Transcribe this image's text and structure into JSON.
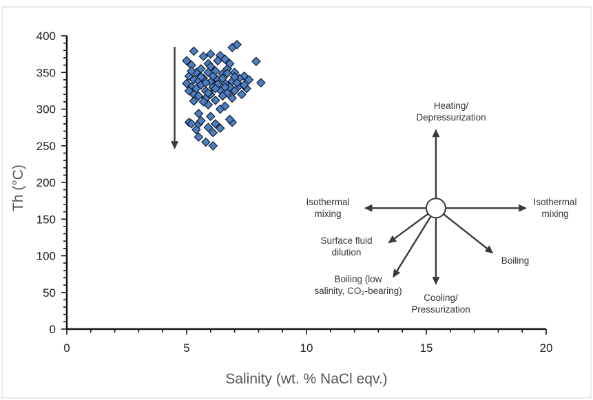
{
  "chart_data": {
    "type": "scatter",
    "xlabel": "Salinity (wt. % NaCl eqv.)",
    "ylabel": "Th (°C)",
    "xlim": [
      0,
      20
    ],
    "ylim": [
      0,
      400
    ],
    "xticks": [
      0,
      5,
      10,
      15,
      20
    ],
    "yticks": [
      0,
      50,
      100,
      150,
      200,
      250,
      300,
      350,
      400
    ],
    "grid": false,
    "marker": "diamond",
    "colors": {
      "marker_fill": "#4f7fc0",
      "marker_edge": "#0d1a30"
    },
    "points": [
      [
        5.3,
        379
      ],
      [
        6.0,
        375
      ],
      [
        6.9,
        384
      ],
      [
        7.1,
        388
      ],
      [
        7.9,
        365
      ],
      [
        6.4,
        373
      ],
      [
        5.0,
        366
      ],
      [
        5.2,
        360
      ],
      [
        5.6,
        355
      ],
      [
        5.9,
        350
      ],
      [
        6.2,
        352
      ],
      [
        6.5,
        348
      ],
      [
        6.7,
        355
      ],
      [
        6.8,
        362
      ],
      [
        7.0,
        350
      ],
      [
        7.4,
        345
      ],
      [
        7.6,
        340
      ],
      [
        8.1,
        336
      ],
      [
        5.1,
        345
      ],
      [
        5.3,
        340
      ],
      [
        5.5,
        338
      ],
      [
        5.7,
        342
      ],
      [
        6.0,
        337
      ],
      [
        6.3,
        340
      ],
      [
        6.6,
        335
      ],
      [
        6.9,
        338
      ],
      [
        7.2,
        332
      ],
      [
        7.5,
        328
      ],
      [
        5.0,
        335
      ],
      [
        5.2,
        330
      ],
      [
        5.4,
        328
      ],
      [
        5.6,
        333
      ],
      [
        5.8,
        325
      ],
      [
        6.1,
        330
      ],
      [
        6.4,
        326
      ],
      [
        6.7,
        322
      ],
      [
        7.0,
        325
      ],
      [
        7.3,
        320
      ],
      [
        5.1,
        325
      ],
      [
        5.3,
        320
      ],
      [
        5.5,
        318
      ],
      [
        5.8,
        315
      ],
      [
        6.0,
        320
      ],
      [
        6.2,
        312
      ],
      [
        6.5,
        318
      ],
      [
        5.9,
        306
      ],
      [
        6.6,
        304
      ],
      [
        5.5,
        294
      ],
      [
        6.0,
        290
      ],
      [
        5.1,
        282
      ],
      [
        5.5,
        280
      ],
      [
        6.2,
        280
      ],
      [
        6.9,
        282
      ],
      [
        5.4,
        272
      ],
      [
        5.9,
        275
      ],
      [
        6.4,
        274
      ],
      [
        5.5,
        262
      ],
      [
        5.8,
        255
      ],
      [
        6.1,
        250
      ],
      [
        5.2,
        280
      ],
      [
        6.8,
        286
      ],
      [
        5.7,
        372
      ],
      [
        6.3,
        366
      ],
      [
        5.9,
        362
      ],
      [
        6.6,
        368
      ],
      [
        7.2,
        342
      ],
      [
        5.4,
        350
      ],
      [
        6.1,
        345
      ],
      [
        6.8,
        330
      ],
      [
        5.7,
        310
      ],
      [
        6.3,
        334
      ],
      [
        6.9,
        315
      ],
      [
        5.6,
        344
      ],
      [
        6.5,
        342
      ],
      [
        7.1,
        336
      ],
      [
        5.2,
        352
      ],
      [
        6.0,
        358
      ],
      [
        6.7,
        349
      ],
      [
        5.8,
        336
      ],
      [
        6.2,
        328
      ],
      [
        7.4,
        333
      ],
      [
        5.3,
        311
      ],
      [
        6.4,
        300
      ],
      [
        5.6,
        284
      ],
      [
        6.1,
        268
      ],
      [
        5.9,
        322
      ],
      [
        6.6,
        330
      ],
      [
        7.0,
        344
      ]
    ],
    "trend_arrow": {
      "x": 4.5,
      "y_from": 385,
      "y_to": 245
    },
    "vector_origin": {
      "x": 15.4,
      "y": 165
    },
    "vectors": [
      {
        "label_lines": [
          "Heating/",
          "Depressurization"
        ],
        "to": [
          15.4,
          273
        ]
      },
      {
        "label_lines": [
          "Isothermal",
          "mixing"
        ],
        "to": [
          12.4,
          165
        ]
      },
      {
        "label_lines": [
          "Isothermal",
          "mixing"
        ],
        "to": [
          19.2,
          165
        ]
      },
      {
        "label_lines": [
          "Surface fluid",
          "dilution"
        ],
        "to": [
          13.4,
          117
        ]
      },
      {
        "label_lines": [
          "Boiling"
        ],
        "to": [
          17.8,
          103
        ]
      },
      {
        "label_lines": [
          "Boiling (low",
          "salinity, CO₂-bearing)"
        ],
        "to": [
          13.6,
          70
        ]
      },
      {
        "label_lines": [
          "Cooling/",
          "Pressurization"
        ],
        "to": [
          15.4,
          60
        ]
      }
    ]
  }
}
